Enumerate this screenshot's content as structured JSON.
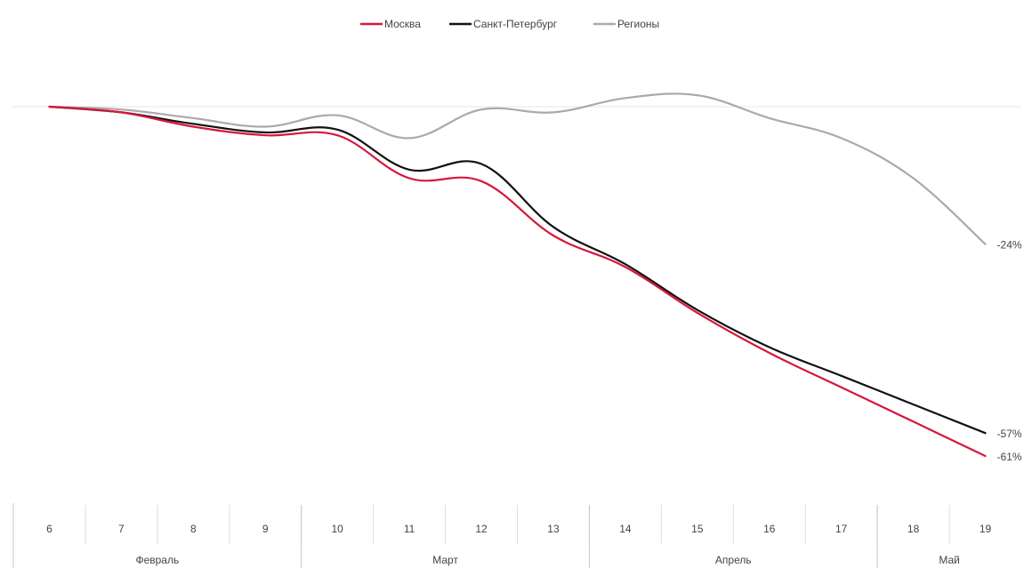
{
  "chart_data": {
    "type": "line",
    "title": "",
    "xlabel": "",
    "ylabel": "",
    "x": [
      "6",
      "7",
      "8",
      "9",
      "10",
      "11",
      "12",
      "13",
      "14",
      "15",
      "16",
      "17",
      "18",
      "19"
    ],
    "months": [
      {
        "label": "Февраль",
        "from": "6",
        "to": "9"
      },
      {
        "label": "Март",
        "from": "10",
        "to": "13"
      },
      {
        "label": "Апрель",
        "from": "14",
        "to": "17"
      },
      {
        "label": "Май",
        "from": "18",
        "to": "19"
      }
    ],
    "ylim": [
      -65,
      5
    ],
    "legend_position": "top-center",
    "grid": false,
    "series": [
      {
        "name": "Москва",
        "color": "#d6173a",
        "values": [
          0,
          -1,
          -3.5,
          -5,
          -5,
          -12.5,
          -13,
          -22.5,
          -28,
          -36,
          -43,
          -49,
          -55,
          -61
        ],
        "end_label": "-61%"
      },
      {
        "name": "Санкт-Петербург",
        "color": "#111111",
        "values": [
          0,
          -1,
          -3,
          -4.5,
          -4,
          -11,
          -10,
          -21,
          -27.5,
          -35.5,
          -42,
          -47,
          -52,
          -57
        ],
        "end_label": "-57%"
      },
      {
        "name": "Регионы",
        "color": "#aaaaaa",
        "values": [
          0,
          -0.5,
          -2,
          -3.5,
          -1.5,
          -5.5,
          -0.5,
          -1,
          1.5,
          2,
          -2,
          -5.5,
          -12.5,
          -24
        ],
        "end_label": "-24%"
      }
    ]
  }
}
